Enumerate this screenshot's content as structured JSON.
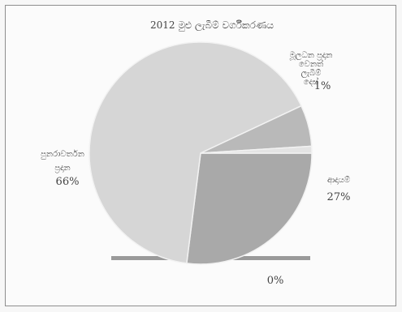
{
  "chart_data": {
    "type": "pie",
    "title": "2012 මුළු ලැබීම් වර්ගීකරණය",
    "slices": [
      {
        "label_lines": [
          "ආදායම්"
        ],
        "percent_label": "27%",
        "value": 27,
        "color": "#a9a9a9"
      },
      {
        "label_lines": [
          "පුනරාවර්තන",
          "ප්‍රදාන"
        ],
        "percent_label": "66%",
        "value": 66,
        "color": "#d6d6d6"
      },
      {
        "label_lines": [
          "",
          ""
        ],
        "percent_label": "",
        "value": 6,
        "color": "#b9b9b9"
      },
      {
        "label_lines": [
          "මූලධන ප්‍රදාන",
          "වෙනත්",
          "ලැබීම්",
          "දෙස්"
        ],
        "percent_label": "1%",
        "value": 1,
        "color": "#e4e4e4"
      }
    ],
    "extra_label": "0%"
  }
}
